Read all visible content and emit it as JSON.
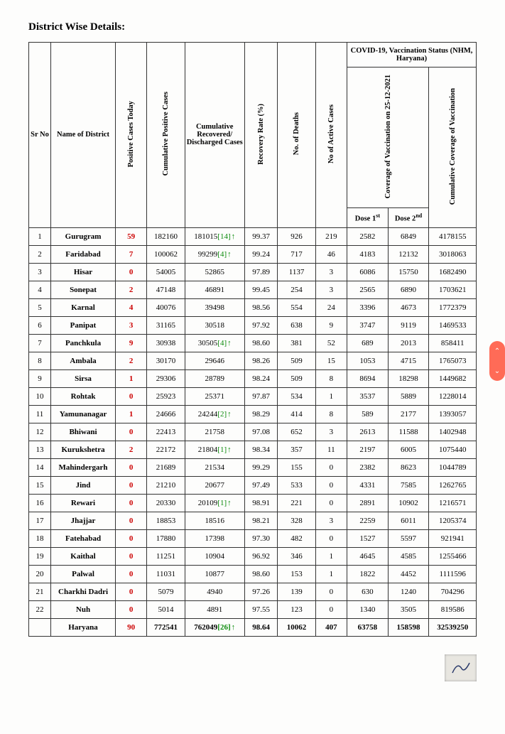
{
  "title": "District Wise Details:",
  "headers": {
    "sr_no": "Sr No",
    "district": "Name of District",
    "positive_today": "Positive Cases Today",
    "cumulative_positive": "Cumulative Positive Cases",
    "cumulative_recovered": "Cumulative Recovered/ Discharged Cases",
    "recovery_rate": "Recovery Rate (%)",
    "deaths": "No. of Deaths",
    "active": "No of Active Cases",
    "vacc_group": "COVID-19, Vaccination Status (NHM, Haryana)",
    "coverage_date": "Coverage of Vaccination on 25-12-2021",
    "dose1_label": "Dose 1",
    "dose1_sup": "st",
    "dose2_label": "Dose 2",
    "dose2_sup": "nd",
    "cumulative_coverage": "Cumulative Coverage of Vaccination"
  },
  "rows": [
    {
      "sr": "1",
      "district": "Gurugram",
      "today": "59",
      "cum_pos": "182160",
      "recovered": "181015",
      "rec_note": "[14]",
      "arrow": true,
      "rate": "99.37",
      "deaths": "926",
      "active": "219",
      "d1": "2582",
      "d2": "6849",
      "cov": "4178155"
    },
    {
      "sr": "2",
      "district": "Faridabad",
      "today": "7",
      "cum_pos": "100062",
      "recovered": "99299",
      "rec_note": "[4]",
      "arrow": true,
      "rate": "99.24",
      "deaths": "717",
      "active": "46",
      "d1": "4183",
      "d2": "12132",
      "cov": "3018063"
    },
    {
      "sr": "3",
      "district": "Hisar",
      "today": "0",
      "cum_pos": "54005",
      "recovered": "52865",
      "rec_note": "",
      "arrow": false,
      "rate": "97.89",
      "deaths": "1137",
      "active": "3",
      "d1": "6086",
      "d2": "15750",
      "cov": "1682490"
    },
    {
      "sr": "4",
      "district": "Sonepat",
      "today": "2",
      "cum_pos": "47148",
      "recovered": "46891",
      "rec_note": "",
      "arrow": false,
      "rate": "99.45",
      "deaths": "254",
      "active": "3",
      "d1": "2565",
      "d2": "6890",
      "cov": "1703621"
    },
    {
      "sr": "5",
      "district": "Karnal",
      "today": "4",
      "cum_pos": "40076",
      "recovered": "39498",
      "rec_note": "",
      "arrow": false,
      "rate": "98.56",
      "deaths": "554",
      "active": "24",
      "d1": "3396",
      "d2": "4673",
      "cov": "1772379"
    },
    {
      "sr": "6",
      "district": "Panipat",
      "today": "3",
      "cum_pos": "31165",
      "recovered": "30518",
      "rec_note": "",
      "arrow": false,
      "rate": "97.92",
      "deaths": "638",
      "active": "9",
      "d1": "3747",
      "d2": "9119",
      "cov": "1469533"
    },
    {
      "sr": "7",
      "district": "Panchkula",
      "today": "9",
      "cum_pos": "30938",
      "recovered": "30505",
      "rec_note": "[4]",
      "arrow": true,
      "rate": "98.60",
      "deaths": "381",
      "active": "52",
      "d1": "689",
      "d2": "2013",
      "cov": "858411"
    },
    {
      "sr": "8",
      "district": "Ambala",
      "today": "2",
      "cum_pos": "30170",
      "recovered": "29646",
      "rec_note": "",
      "arrow": false,
      "rate": "98.26",
      "deaths": "509",
      "active": "15",
      "d1": "1053",
      "d2": "4715",
      "cov": "1765073"
    },
    {
      "sr": "9",
      "district": "Sirsa",
      "today": "1",
      "cum_pos": "29306",
      "recovered": "28789",
      "rec_note": "",
      "arrow": false,
      "rate": "98.24",
      "deaths": "509",
      "active": "8",
      "d1": "8694",
      "d2": "18298",
      "cov": "1449682"
    },
    {
      "sr": "10",
      "district": "Rohtak",
      "today": "0",
      "cum_pos": "25923",
      "recovered": "25371",
      "rec_note": "",
      "arrow": false,
      "rate": "97.87",
      "deaths": "534",
      "active": "1",
      "d1": "3537",
      "d2": "5889",
      "cov": "1228014"
    },
    {
      "sr": "11",
      "district": "Yamunanagar",
      "today": "1",
      "cum_pos": "24666",
      "recovered": "24244",
      "rec_note": "[2]",
      "arrow": true,
      "rate": "98.29",
      "deaths": "414",
      "active": "8",
      "d1": "589",
      "d2": "2177",
      "cov": "1393057"
    },
    {
      "sr": "12",
      "district": "Bhiwani",
      "today": "0",
      "cum_pos": "22413",
      "recovered": "21758",
      "rec_note": "",
      "arrow": false,
      "rate": "97.08",
      "deaths": "652",
      "active": "3",
      "d1": "2613",
      "d2": "11588",
      "cov": "1402948"
    },
    {
      "sr": "13",
      "district": "Kurukshetra",
      "today": "2",
      "cum_pos": "22172",
      "recovered": "21804",
      "rec_note": "[1]",
      "arrow": true,
      "rate": "98.34",
      "deaths": "357",
      "active": "11",
      "d1": "2197",
      "d2": "6005",
      "cov": "1075440"
    },
    {
      "sr": "14",
      "district": "Mahindergarh",
      "today": "0",
      "cum_pos": "21689",
      "recovered": "21534",
      "rec_note": "",
      "arrow": false,
      "rate": "99.29",
      "deaths": "155",
      "active": "0",
      "d1": "2382",
      "d2": "8623",
      "cov": "1044789"
    },
    {
      "sr": "15",
      "district": "Jind",
      "today": "0",
      "cum_pos": "21210",
      "recovered": "20677",
      "rec_note": "",
      "arrow": false,
      "rate": "97.49",
      "deaths": "533",
      "active": "0",
      "d1": "4331",
      "d2": "7585",
      "cov": "1262765"
    },
    {
      "sr": "16",
      "district": "Rewari",
      "today": "0",
      "cum_pos": "20330",
      "recovered": "20109",
      "rec_note": "[1]",
      "arrow": true,
      "rate": "98.91",
      "deaths": "221",
      "active": "0",
      "d1": "2891",
      "d2": "10902",
      "cov": "1216571"
    },
    {
      "sr": "17",
      "district": "Jhajjar",
      "today": "0",
      "cum_pos": "18853",
      "recovered": "18516",
      "rec_note": "",
      "arrow": false,
      "rate": "98.21",
      "deaths": "328",
      "active": "3",
      "d1": "2259",
      "d2": "6011",
      "cov": "1205374"
    },
    {
      "sr": "18",
      "district": "Fatehabad",
      "today": "0",
      "cum_pos": "17880",
      "recovered": "17398",
      "rec_note": "",
      "arrow": false,
      "rate": "97.30",
      "deaths": "482",
      "active": "0",
      "d1": "1527",
      "d2": "5597",
      "cov": "921941"
    },
    {
      "sr": "19",
      "district": "Kaithal",
      "today": "0",
      "cum_pos": "11251",
      "recovered": "10904",
      "rec_note": "",
      "arrow": false,
      "rate": "96.92",
      "deaths": "346",
      "active": "1",
      "d1": "4645",
      "d2": "4585",
      "cov": "1255466"
    },
    {
      "sr": "20",
      "district": "Palwal",
      "today": "0",
      "cum_pos": "11031",
      "recovered": "10877",
      "rec_note": "",
      "arrow": false,
      "rate": "98.60",
      "deaths": "153",
      "active": "1",
      "d1": "1822",
      "d2": "4452",
      "cov": "1111596"
    },
    {
      "sr": "21",
      "district": "Charkhi Dadri",
      "today": "0",
      "cum_pos": "5079",
      "recovered": "4940",
      "rec_note": "",
      "arrow": false,
      "rate": "97.26",
      "deaths": "139",
      "active": "0",
      "d1": "630",
      "d2": "1240",
      "cov": "704296"
    },
    {
      "sr": "22",
      "district": "Nuh",
      "today": "0",
      "cum_pos": "5014",
      "recovered": "4891",
      "rec_note": "",
      "arrow": false,
      "rate": "97.55",
      "deaths": "123",
      "active": "0",
      "d1": "1340",
      "d2": "3505",
      "cov": "819586"
    }
  ],
  "total": {
    "district": "Haryana",
    "today": "90",
    "cum_pos": "772541",
    "recovered": "762049",
    "rec_note": "[26]",
    "arrow": true,
    "rate": "98.64",
    "deaths": "10062",
    "active": "407",
    "d1": "63758",
    "d2": "158598",
    "cov": "32539250"
  },
  "colors": {
    "red_text": "#c00",
    "arrow_color": "#0a8a0a",
    "border": "#333",
    "background": "#fdfdfc",
    "widget": "#ff6b57"
  }
}
